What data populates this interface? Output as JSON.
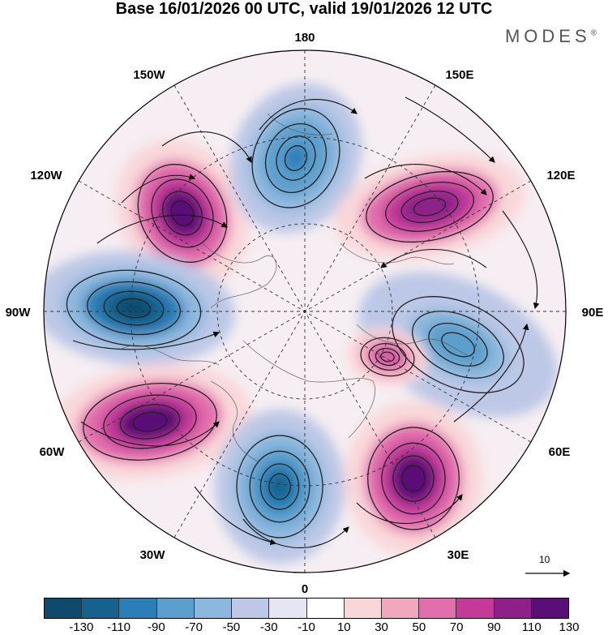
{
  "title": "Base 16/01/2026 00 UTC, valid 19/01/2026 12 UTC",
  "brand": "MODES",
  "brand_mark": "®",
  "longitude_labels": {
    "top": "180",
    "bottom": "0",
    "left": "90W",
    "right": "90E",
    "upper_left": "150W",
    "upper_right": "150E",
    "mid_upper_left": "120W",
    "mid_upper_right": "120E",
    "mid_lower_left": "60W",
    "mid_lower_right": "60E",
    "lower_left": "30W",
    "lower_right": "30E"
  },
  "reference_vector": {
    "label": "10"
  },
  "colorbar": {
    "tick_labels": [
      "-130",
      "-110",
      "-90",
      "-70",
      "-50",
      "-30",
      "-10",
      "10",
      "30",
      "50",
      "70",
      "90",
      "110",
      "130"
    ],
    "colors": [
      "#0d4a6b",
      "#15628f",
      "#2a7fb8",
      "#5b9fcc",
      "#8cb8dd",
      "#bcc8e6",
      "#e5e5f3",
      "#ffffff",
      "#f9d7d9",
      "#f1a8bf",
      "#e26fad",
      "#c33a98",
      "#8d2189",
      "#5a0f76"
    ]
  },
  "anomaly_centers": [
    {
      "name": "east-pacific-high",
      "value": 130
    },
    {
      "name": "north-pacific-low",
      "value": -90
    },
    {
      "name": "siberia-high",
      "value": 110
    },
    {
      "name": "canada-low",
      "value": -130
    },
    {
      "name": "central-asia-low",
      "value": -70
    },
    {
      "name": "north-atlantic-high",
      "value": 130
    },
    {
      "name": "europe-high",
      "value": 130
    },
    {
      "name": "greenland-sea-low",
      "value": -110
    },
    {
      "name": "kara-sea-high",
      "value": 70
    }
  ]
}
